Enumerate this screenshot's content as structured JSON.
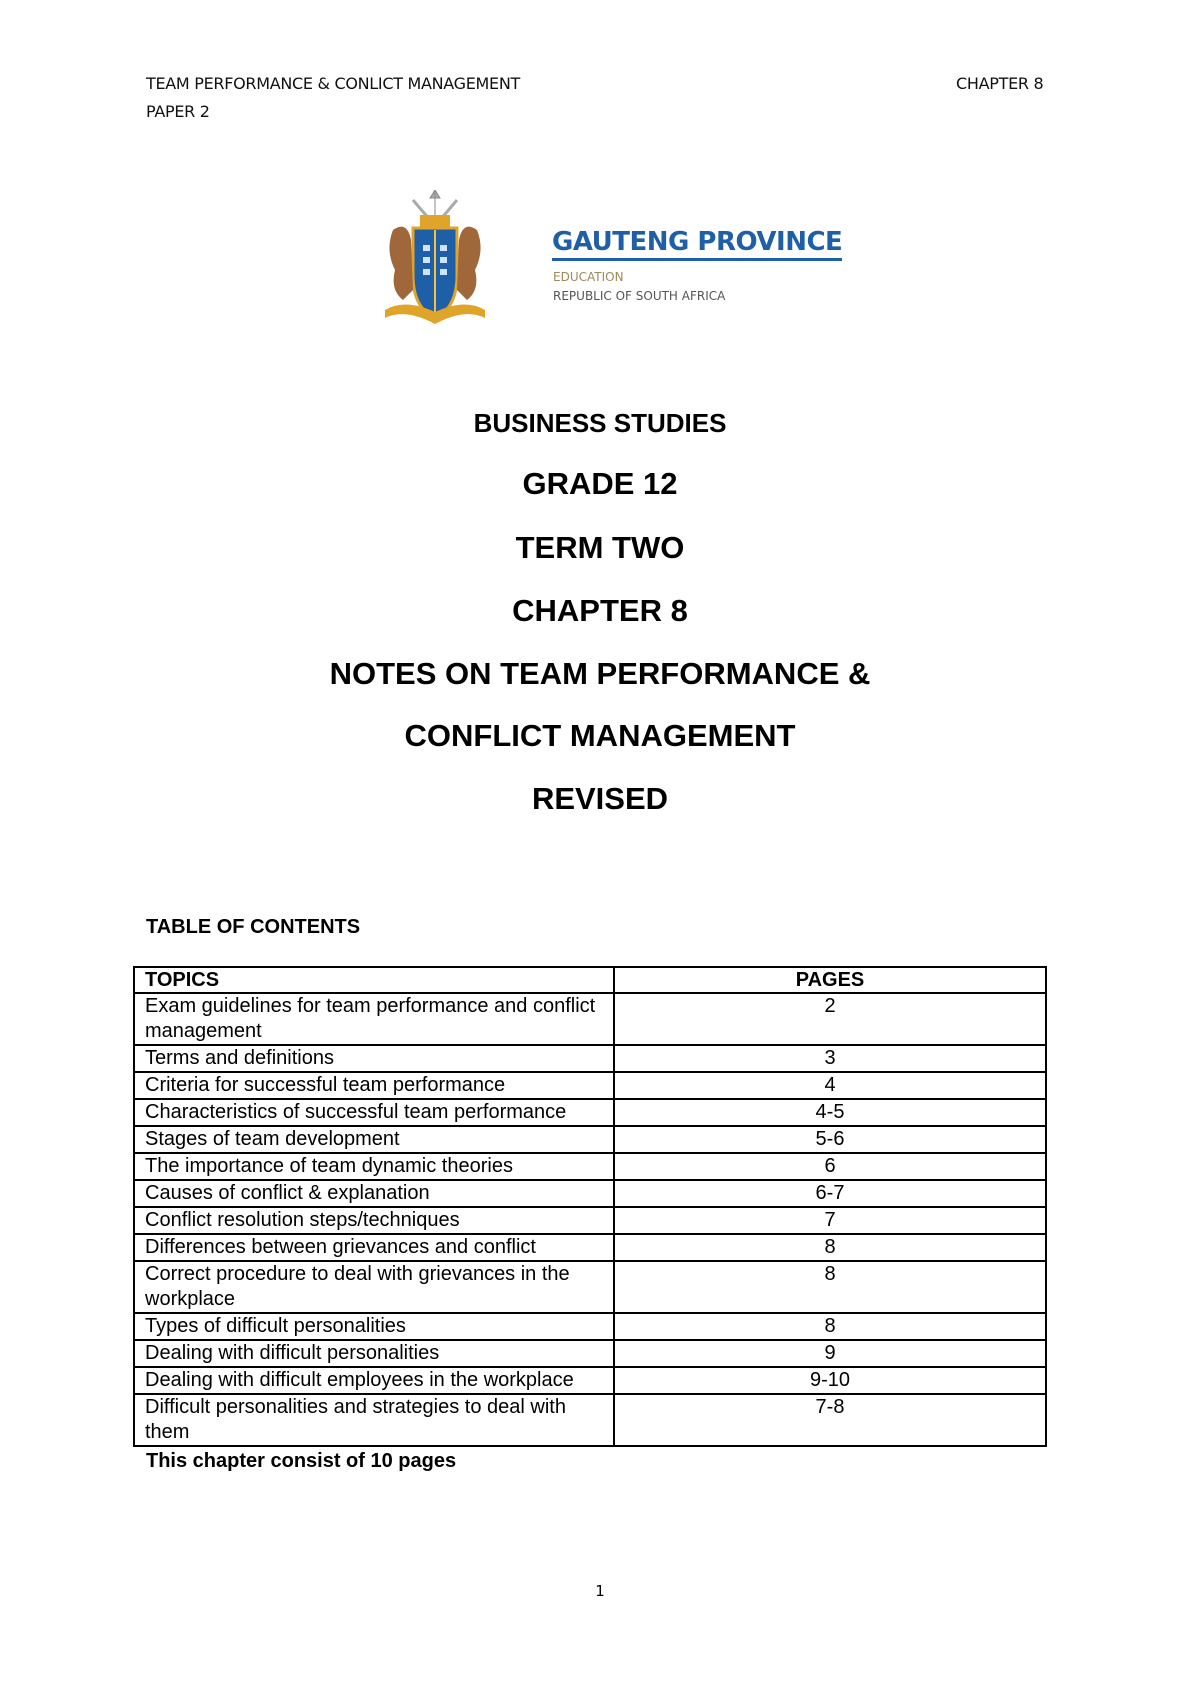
{
  "header": {
    "left_line1": "TEAM PERFORMANCE & CONLICT MANAGEMENT",
    "left_line2": "PAPER 2",
    "right": "CHAPTER 8"
  },
  "logo": {
    "title": "GAUTENG PROVINCE",
    "subtitle1": "EDUCATION",
    "subtitle2": "REPUBLIC OF SOUTH AFRICA",
    "colors": {
      "blue": "#1f5fa8",
      "gold": "#e0a42a",
      "brown": "#a0683a"
    }
  },
  "title_block": {
    "subject": "BUSINESS STUDIES",
    "grade": "GRADE 12",
    "term": "TERM TWO",
    "chapter": "CHAPTER 8",
    "notes_line1": "NOTES ON TEAM PERFORMANCE &",
    "notes_line2": "CONFLICT MANAGEMENT",
    "revised": "REVISED"
  },
  "toc": {
    "title": "TABLE OF CONTENTS",
    "columns": [
      "TOPICS",
      "PAGES"
    ],
    "rows": [
      {
        "topic": "Exam guidelines for team performance and conflict management",
        "pages": "2"
      },
      {
        "topic": "Terms and definitions",
        "pages": "3"
      },
      {
        "topic": "Criteria for successful team performance",
        "pages": "4"
      },
      {
        "topic": "Characteristics of successful team performance",
        "pages": "4-5"
      },
      {
        "topic": "Stages of team development",
        "pages": "5-6"
      },
      {
        "topic": "The importance of team dynamic theories",
        "pages": "6"
      },
      {
        "topic": "Causes of conflict & explanation",
        "pages": "6-7"
      },
      {
        "topic": "Conflict resolution steps/techniques",
        "pages": "7"
      },
      {
        "topic": "Differences between grievances and conflict",
        "pages": "8"
      },
      {
        "topic": "Correct procedure to deal with grievances in the workplace",
        "pages": "8"
      },
      {
        "topic": "Types of difficult personalities",
        "pages": "8"
      },
      {
        "topic": "Dealing with difficult personalities",
        "pages": "9"
      },
      {
        "topic": "Dealing with difficult employees in the workplace",
        "pages": "9-10"
      },
      {
        "topic": "Difficult personalities and strategies to deal with them",
        "pages": "7-8"
      }
    ],
    "footer_note": "This chapter consist of 10 pages"
  },
  "page_number": "1"
}
